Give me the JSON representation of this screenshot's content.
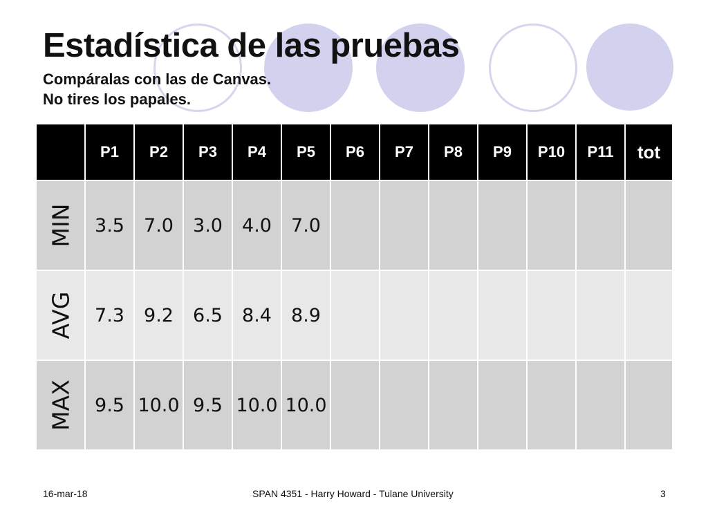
{
  "slide": {
    "title": "Estadística de las pruebas",
    "subtitle_lines": [
      "Compáralas con las de Canvas.",
      "No tires los papales."
    ]
  },
  "decoration": {
    "circle_fill": "#d2d2ee",
    "circle_outline": "#d5d5ec"
  },
  "table": {
    "header_bg": "#000000",
    "columns": [
      "",
      "P1",
      "P2",
      "P3",
      "P4",
      "P5",
      "P6",
      "P7",
      "P8",
      "P9",
      "P10",
      "P11",
      "tot"
    ],
    "rows": [
      {
        "label": "MIN",
        "values": [
          "3.5",
          "7.0",
          "3.0",
          "4.0",
          "7.0",
          "",
          "",
          "",
          "",
          "",
          "",
          ""
        ]
      },
      {
        "label": "AVG",
        "values": [
          "7.3",
          "9.2",
          "6.5",
          "8.4",
          "8.9",
          "",
          "",
          "",
          "",
          "",
          "",
          ""
        ]
      },
      {
        "label": "MAX",
        "values": [
          "9.5",
          "10.0",
          "9.5",
          "10.0",
          "10.0",
          "",
          "",
          "",
          "",
          "",
          "",
          ""
        ]
      }
    ]
  },
  "footer": {
    "date": "16-mar-18",
    "course": "SPAN 4351 - Harry Howard - Tulane University",
    "page_number": "3"
  }
}
